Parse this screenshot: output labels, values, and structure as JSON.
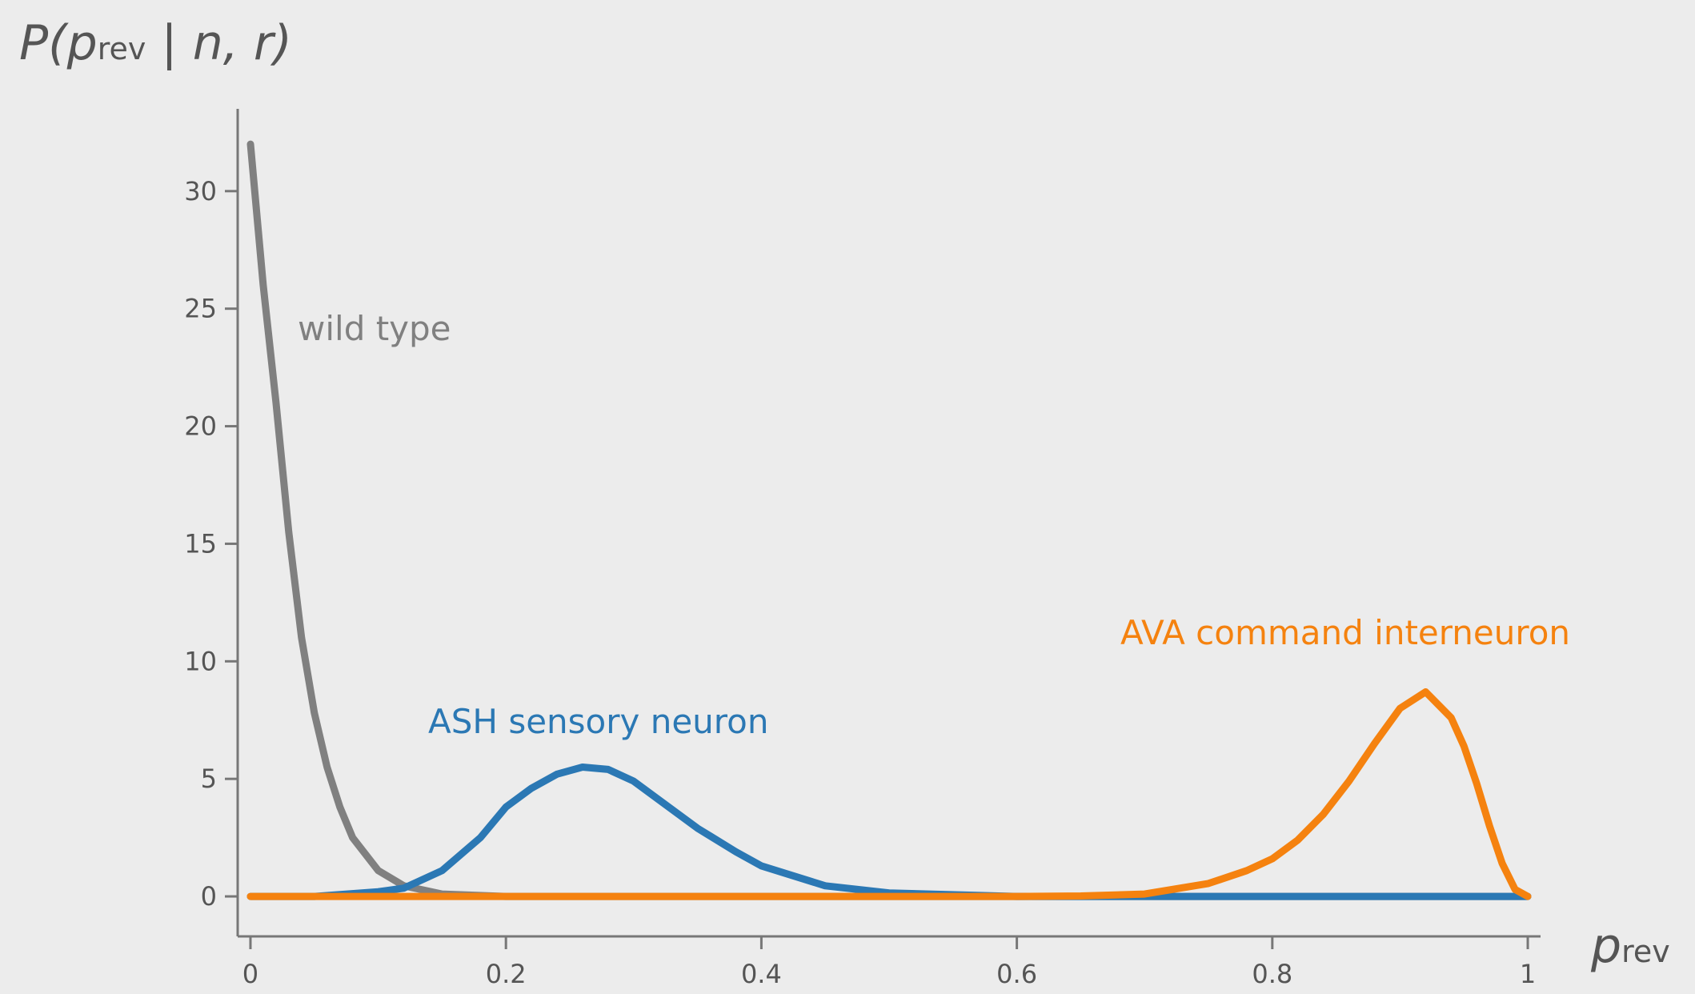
{
  "chart_data": {
    "type": "line",
    "ylabel": [
      "P(p",
      "rev",
      " | n, r)"
    ],
    "xlabel": [
      "p",
      "rev"
    ],
    "xlim": [
      -0.01,
      1.01
    ],
    "ylim": [
      -1.7,
      33.5
    ],
    "xticks": [
      0,
      0.2,
      0.4,
      0.6,
      0.8,
      1
    ],
    "yticks": [
      0,
      5,
      10,
      15,
      20,
      25,
      30
    ],
    "series": [
      {
        "name": "wild type",
        "color": "#808080",
        "x": [
          0,
          0.01,
          0.02,
          0.03,
          0.04,
          0.05,
          0.06,
          0.07,
          0.08,
          0.1,
          0.12,
          0.15,
          0.2,
          0.3,
          0.5,
          1
        ],
        "values": [
          32,
          26,
          21,
          15.5,
          11,
          7.8,
          5.5,
          3.8,
          2.5,
          1.1,
          0.45,
          0.1,
          0,
          0,
          0,
          0
        ]
      },
      {
        "name": "ASH sensory neuron",
        "color": "#2b78b4",
        "x": [
          0,
          0.05,
          0.1,
          0.12,
          0.15,
          0.18,
          0.2,
          0.22,
          0.24,
          0.26,
          0.28,
          0.3,
          0.32,
          0.35,
          0.38,
          0.4,
          0.45,
          0.5,
          0.6,
          0.8,
          1
        ],
        "values": [
          0,
          0,
          0.2,
          0.35,
          1.1,
          2.5,
          3.8,
          4.6,
          5.2,
          5.5,
          5.4,
          4.9,
          4.1,
          2.9,
          1.9,
          1.3,
          0.45,
          0.15,
          0,
          0,
          0
        ]
      },
      {
        "name": "AVA command interneuron",
        "color": "#f5820f",
        "x": [
          0,
          0.6,
          0.65,
          0.7,
          0.75,
          0.78,
          0.8,
          0.82,
          0.84,
          0.86,
          0.88,
          0.9,
          0.92,
          0.94,
          0.95,
          0.96,
          0.97,
          0.98,
          0.99,
          1
        ],
        "values": [
          0,
          0,
          0.02,
          0.1,
          0.55,
          1.1,
          1.6,
          2.4,
          3.5,
          4.9,
          6.5,
          8.0,
          8.7,
          7.6,
          6.4,
          4.8,
          3.0,
          1.4,
          0.3,
          0
        ]
      }
    ]
  }
}
